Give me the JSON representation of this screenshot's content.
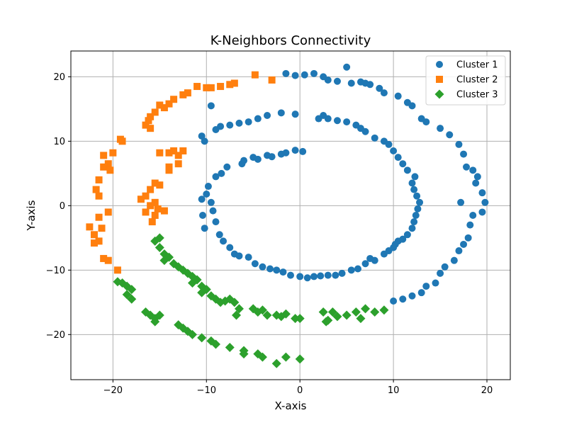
{
  "chart_data": {
    "type": "scatter",
    "title": "K-Neighbors Connectivity",
    "xlabel": "X-axis",
    "ylabel": "Y-axis",
    "xlim": [
      -24.5,
      22.5
    ],
    "ylim": [
      -27,
      24
    ],
    "xticks": [
      -20,
      -10,
      0,
      10,
      20
    ],
    "yticks": [
      -20,
      -10,
      0,
      10,
      20
    ],
    "grid": true,
    "legend_position": "top-right",
    "series": [
      {
        "name": "Cluster 1",
        "marker": "circle",
        "color": "#1f77b4",
        "points": [
          [
            -10.5,
            1.0
          ],
          [
            -10.4,
            -1.5
          ],
          [
            -10.2,
            -3.5
          ],
          [
            -10.0,
            1.8
          ],
          [
            -9.8,
            3.0
          ],
          [
            -9.5,
            0.5
          ],
          [
            -9.3,
            -0.8
          ],
          [
            -9.0,
            -2.5
          ],
          [
            -9.0,
            4.5
          ],
          [
            -8.6,
            -4.5
          ],
          [
            -8.2,
            -5.5
          ],
          [
            -8.4,
            5.0
          ],
          [
            -7.8,
            6.0
          ],
          [
            -7.5,
            -6.5
          ],
          [
            -7.0,
            -7.5
          ],
          [
            -6.5,
            -7.8
          ],
          [
            -6.2,
            6.5
          ],
          [
            -6.0,
            7.0
          ],
          [
            -5.5,
            -8.0
          ],
          [
            -5.0,
            7.5
          ],
          [
            -4.8,
            -9.0
          ],
          [
            -4.5,
            7.2
          ],
          [
            -4.0,
            -9.5
          ],
          [
            -3.5,
            7.8
          ],
          [
            -3.2,
            -9.8
          ],
          [
            -3.0,
            7.6
          ],
          [
            -2.5,
            -10.0
          ],
          [
            -2.0,
            8.0
          ],
          [
            -1.8,
            -10.3
          ],
          [
            -1.5,
            8.2
          ],
          [
            -1.0,
            -10.8
          ],
          [
            -0.5,
            8.6
          ],
          [
            0.0,
            -11.0
          ],
          [
            0.3,
            8.4
          ],
          [
            0.8,
            -11.2
          ],
          [
            1.5,
            -11.0
          ],
          [
            2.2,
            -10.9
          ],
          [
            3.0,
            -10.8
          ],
          [
            3.8,
            -10.8
          ],
          [
            4.5,
            -10.5
          ],
          [
            5.5,
            -10.0
          ],
          [
            6.2,
            -9.8
          ],
          [
            7.0,
            -9.0
          ],
          [
            7.5,
            -8.2
          ],
          [
            8.0,
            -8.5
          ],
          [
            9.0,
            -7.5
          ],
          [
            9.5,
            -7.0
          ],
          [
            10.0,
            -6.5
          ],
          [
            10.5,
            -5.5
          ],
          [
            10.2,
            -6.0
          ],
          [
            11.0,
            -5.2
          ],
          [
            11.5,
            -4.5
          ],
          [
            12.0,
            -3.5
          ],
          [
            12.2,
            -2.5
          ],
          [
            12.4,
            -1.5
          ],
          [
            12.6,
            -0.5
          ],
          [
            12.8,
            0.5
          ],
          [
            12.5,
            1.5
          ],
          [
            12.2,
            2.5
          ],
          [
            12.0,
            3.5
          ],
          [
            12.3,
            4.5
          ],
          [
            11.5,
            5.5
          ],
          [
            11.0,
            6.5
          ],
          [
            10.5,
            7.5
          ],
          [
            10.0,
            8.5
          ],
          [
            9.5,
            9.5
          ],
          [
            9.0,
            10.0
          ],
          [
            8.0,
            10.5
          ],
          [
            7.0,
            11.5
          ],
          [
            6.5,
            12.0
          ],
          [
            6.0,
            12.5
          ],
          [
            5.0,
            13.0
          ],
          [
            4.0,
            13.2
          ],
          [
            3.0,
            13.5
          ],
          [
            2.5,
            14.0
          ],
          [
            2.0,
            13.5
          ],
          [
            -0.5,
            14.2
          ],
          [
            -2.0,
            14.4
          ],
          [
            -3.5,
            14.0
          ],
          [
            -4.5,
            13.5
          ],
          [
            -5.5,
            13.0
          ],
          [
            -6.5,
            12.8
          ],
          [
            -7.5,
            12.5
          ],
          [
            -8.5,
            12.3
          ],
          [
            -9.0,
            11.8
          ],
          [
            -10.5,
            10.8
          ],
          [
            -10.2,
            10.0
          ],
          [
            -9.5,
            15.5
          ],
          [
            -1.5,
            20.5
          ],
          [
            -0.5,
            20.2
          ],
          [
            0.5,
            20.3
          ],
          [
            1.5,
            20.5
          ],
          [
            2.5,
            20.0
          ],
          [
            3.0,
            19.5
          ],
          [
            4.0,
            19.3
          ],
          [
            5.0,
            21.5
          ],
          [
            5.5,
            19.0
          ],
          [
            6.5,
            19.2
          ],
          [
            7.0,
            19.0
          ],
          [
            7.5,
            18.8
          ],
          [
            8.5,
            18.2
          ],
          [
            9.0,
            17.5
          ],
          [
            10.5,
            17.0
          ],
          [
            11.5,
            16.0
          ],
          [
            12.0,
            15.5
          ],
          [
            13.0,
            13.5
          ],
          [
            13.5,
            13.0
          ],
          [
            15.0,
            12.0
          ],
          [
            16.0,
            11.0
          ],
          [
            17.0,
            9.5
          ],
          [
            17.5,
            8.0
          ],
          [
            17.8,
            6.0
          ],
          [
            18.5,
            5.5
          ],
          [
            19.0,
            4.5
          ],
          [
            18.8,
            3.5
          ],
          [
            19.5,
            2.0
          ],
          [
            19.8,
            0.5
          ],
          [
            19.5,
            -1.0
          ],
          [
            18.5,
            -1.5
          ],
          [
            18.2,
            -3.0
          ],
          [
            18.0,
            -5.0
          ],
          [
            17.5,
            -6.0
          ],
          [
            17.0,
            -7.0
          ],
          [
            16.5,
            -8.5
          ],
          [
            15.5,
            -9.5
          ],
          [
            15.0,
            -10.5
          ],
          [
            14.5,
            -12.0
          ],
          [
            13.5,
            -12.5
          ],
          [
            13.0,
            -13.5
          ],
          [
            12.0,
            -14.0
          ],
          [
            11.0,
            -14.5
          ],
          [
            10.0,
            -14.8
          ],
          [
            17.2,
            0.5
          ]
        ]
      },
      {
        "name": "Cluster 2",
        "marker": "square",
        "color": "#ff7f0e",
        "points": [
          [
            -4.8,
            20.3
          ],
          [
            -3.0,
            19.5
          ],
          [
            -7.0,
            19.0
          ],
          [
            -7.5,
            18.8
          ],
          [
            -8.5,
            18.5
          ],
          [
            -9.5,
            18.3
          ],
          [
            -10.0,
            18.3
          ],
          [
            -11.0,
            18.5
          ],
          [
            -12.0,
            17.5
          ],
          [
            -12.5,
            17.2
          ],
          [
            -13.5,
            16.5
          ],
          [
            -14.0,
            15.8
          ],
          [
            -14.5,
            15.2
          ],
          [
            -15.0,
            15.6
          ],
          [
            -15.5,
            14.5
          ],
          [
            -16.0,
            13.8
          ],
          [
            -16.5,
            12.5
          ],
          [
            -16.2,
            13.2
          ],
          [
            -16.0,
            12.0
          ],
          [
            -19.2,
            10.3
          ],
          [
            -19.0,
            10.0
          ],
          [
            -20.0,
            8.2
          ],
          [
            -21.0,
            7.8
          ],
          [
            -20.5,
            6.5
          ],
          [
            -21.0,
            6.0
          ],
          [
            -20.3,
            5.5
          ],
          [
            -21.5,
            4.0
          ],
          [
            -21.8,
            2.5
          ],
          [
            -21.5,
            1.5
          ],
          [
            -20.5,
            -1.0
          ],
          [
            -21.5,
            -1.8
          ],
          [
            -22.5,
            -3.3
          ],
          [
            -21.2,
            -3.5
          ],
          [
            -22.0,
            -4.5
          ],
          [
            -21.5,
            -5.5
          ],
          [
            -22.0,
            -5.8
          ],
          [
            -21.0,
            -8.2
          ],
          [
            -20.5,
            -8.5
          ],
          [
            -19.5,
            -10.0
          ],
          [
            -13.5,
            8.5
          ],
          [
            -12.5,
            8.5
          ],
          [
            -13.0,
            7.8
          ],
          [
            -14.0,
            8.2
          ],
          [
            -15.0,
            8.2
          ],
          [
            -14.0,
            6.0
          ],
          [
            -14.0,
            5.5
          ],
          [
            -13.0,
            6.5
          ],
          [
            -15.5,
            3.5
          ],
          [
            -15.0,
            3.2
          ],
          [
            -16.0,
            2.5
          ],
          [
            -16.5,
            1.5
          ],
          [
            -17.0,
            1.0
          ],
          [
            -15.5,
            0.5
          ],
          [
            -16.0,
            0.0
          ],
          [
            -15.2,
            -0.5
          ],
          [
            -16.5,
            -1.0
          ],
          [
            -15.5,
            -1.5
          ],
          [
            -14.5,
            -0.8
          ],
          [
            -15.8,
            -2.5
          ]
        ]
      },
      {
        "name": "Cluster 3",
        "marker": "diamond",
        "color": "#2ca02c",
        "points": [
          [
            -15.0,
            -5.0
          ],
          [
            -15.5,
            -5.5
          ],
          [
            -15.0,
            -6.5
          ],
          [
            -14.5,
            -7.5
          ],
          [
            -14.0,
            -8.0
          ],
          [
            -14.5,
            -8.5
          ],
          [
            -13.5,
            -9.0
          ],
          [
            -13.0,
            -9.5
          ],
          [
            -12.5,
            -10.0
          ],
          [
            -12.0,
            -10.5
          ],
          [
            -11.5,
            -11.0
          ],
          [
            -11.0,
            -11.5
          ],
          [
            -11.5,
            -12.0
          ],
          [
            -10.5,
            -12.5
          ],
          [
            -10.0,
            -13.0
          ],
          [
            -10.5,
            -13.5
          ],
          [
            -9.5,
            -14.0
          ],
          [
            -9.0,
            -14.5
          ],
          [
            -8.5,
            -15.0
          ],
          [
            -8.0,
            -14.8
          ],
          [
            -7.5,
            -14.5
          ],
          [
            -7.0,
            -15.0
          ],
          [
            -6.5,
            -16.0
          ],
          [
            -6.8,
            -17.0
          ],
          [
            -5.0,
            -16.0
          ],
          [
            -4.5,
            -16.5
          ],
          [
            -4.0,
            -16.2
          ],
          [
            -3.5,
            -17.0
          ],
          [
            -2.5,
            -17.0
          ],
          [
            -2.0,
            -17.2
          ],
          [
            -1.5,
            -16.8
          ],
          [
            -0.5,
            -17.5
          ],
          [
            0.0,
            -17.5
          ],
          [
            -19.5,
            -11.8
          ],
          [
            -19.0,
            -12.0
          ],
          [
            -18.5,
            -12.5
          ],
          [
            -18.0,
            -13.0
          ],
          [
            -18.5,
            -13.8
          ],
          [
            -18.0,
            -14.5
          ],
          [
            -16.5,
            -16.5
          ],
          [
            -16.0,
            -17.0
          ],
          [
            -15.0,
            -17.0
          ],
          [
            -15.5,
            -17.5
          ],
          [
            -15.5,
            -18.0
          ],
          [
            -13.0,
            -18.5
          ],
          [
            -12.5,
            -19.0
          ],
          [
            -12.0,
            -19.5
          ],
          [
            -11.5,
            -20.0
          ],
          [
            -10.5,
            -20.5
          ],
          [
            -9.5,
            -21.0
          ],
          [
            -9.0,
            -21.5
          ],
          [
            -7.5,
            -22.0
          ],
          [
            -6.0,
            -22.5
          ],
          [
            -6.0,
            -23.0
          ],
          [
            -4.5,
            -23.0
          ],
          [
            -4.0,
            -23.5
          ],
          [
            -2.5,
            -24.5
          ],
          [
            -1.5,
            -23.5
          ],
          [
            0.0,
            -23.8
          ],
          [
            2.5,
            -16.5
          ],
          [
            3.0,
            -17.8
          ],
          [
            4.0,
            -17.2
          ],
          [
            5.0,
            -17.0
          ],
          [
            6.0,
            -16.5
          ],
          [
            6.5,
            -17.5
          ],
          [
            7.0,
            -16.0
          ],
          [
            8.0,
            -16.5
          ],
          [
            9.0,
            -16.2
          ],
          [
            3.5,
            -16.5
          ],
          [
            2.8,
            -18.0
          ]
        ]
      }
    ]
  }
}
